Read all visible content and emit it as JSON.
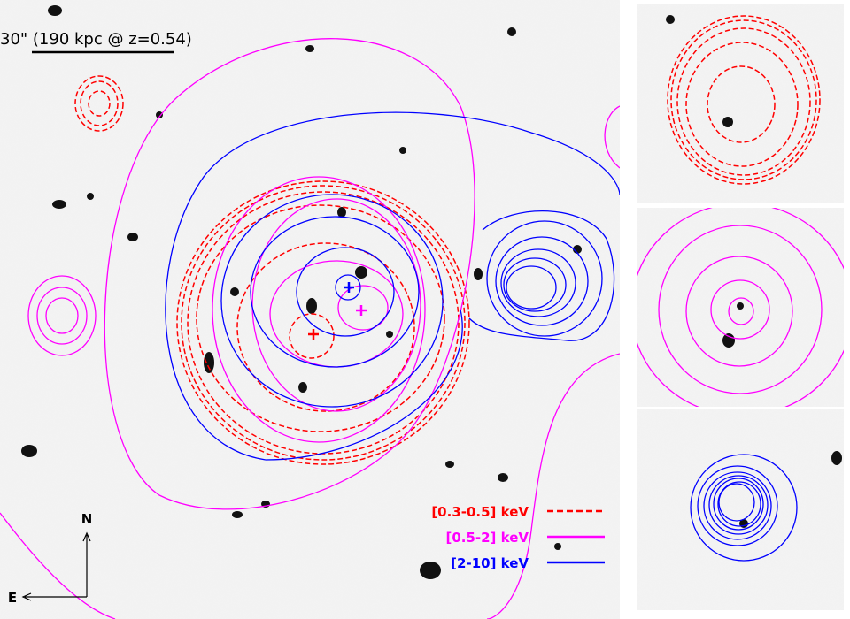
{
  "scale_bar": {
    "label": "30\" (190 kpc @ z=0.54)"
  },
  "compass": {
    "north": "N",
    "east": "E"
  },
  "legend": [
    {
      "label": "[0.3-0.5] keV",
      "color": "#ff0000",
      "style": "dashed"
    },
    {
      "label": "[0.5-2] keV",
      "color": "#ff00ff",
      "style": "solid"
    },
    {
      "label": "[2-10] keV",
      "color": "#0000ff",
      "style": "solid"
    }
  ]
}
